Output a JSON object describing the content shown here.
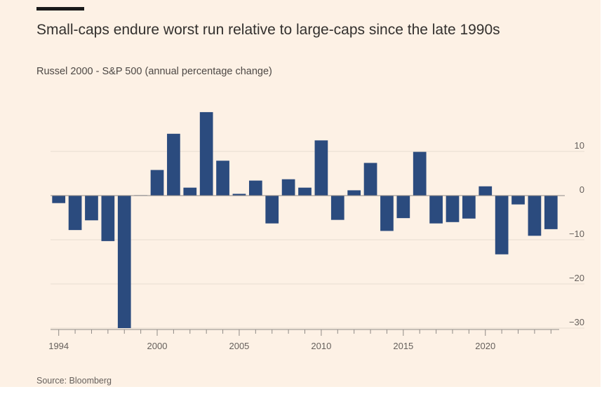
{
  "header": {
    "title": "Small-caps endure worst run relative to large-caps since the late 1990s",
    "subtitle": "Russel 2000 - S&P 500 (annual percentage change)"
  },
  "footer": {
    "source": "Source: Bloomberg"
  },
  "colors": {
    "bar": "#2b4b7e",
    "grid": "#e8ddd1",
    "zero": "#8f8a86",
    "background": "#fdf1e5"
  },
  "chart_data": {
    "type": "bar",
    "x": [
      1994,
      1995,
      1996,
      1997,
      1998,
      1999,
      2000,
      2001,
      2002,
      2003,
      2004,
      2005,
      2006,
      2007,
      2008,
      2009,
      2010,
      2011,
      2012,
      2013,
      2014,
      2015,
      2016,
      2017,
      2018,
      2019,
      2020,
      2021,
      2022,
      2023,
      2024
    ],
    "values": [
      -1.7,
      -7.8,
      -5.6,
      -10.3,
      -30.0,
      0.1,
      5.8,
      14.0,
      1.8,
      18.9,
      7.9,
      0.4,
      3.4,
      -6.3,
      3.7,
      1.8,
      12.5,
      -5.5,
      1.2,
      7.4,
      -8.0,
      -5.1,
      9.9,
      -6.3,
      -6.0,
      -5.2,
      2.1,
      -13.3,
      -2.0,
      -9.1,
      -7.6
    ],
    "xticks": [
      "1994",
      "2000",
      "2005",
      "2010",
      "2015",
      "2020"
    ],
    "xtick_values": [
      1994,
      2000,
      2005,
      2010,
      2015,
      2020
    ],
    "yticks": [
      10,
      0,
      -10,
      -20,
      -30
    ],
    "ylim": [
      -30,
      20
    ],
    "xlim": [
      1994,
      2024
    ],
    "grid": true,
    "y_axis_side": "right"
  }
}
